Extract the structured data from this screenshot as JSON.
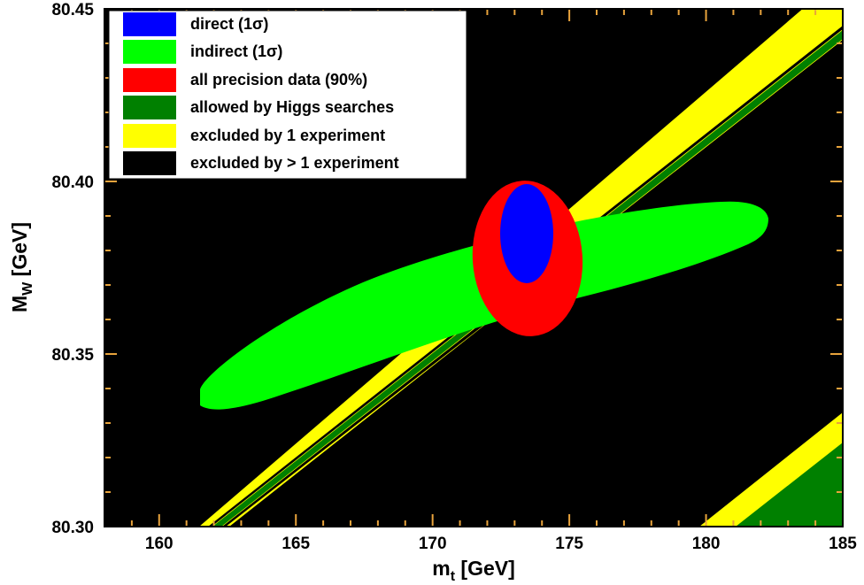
{
  "chart_data": {
    "type": "contour",
    "xlabel_main": "m",
    "xlabel_sub": "t",
    "xlabel_unit": " [GeV]",
    "ylabel_main": "M",
    "ylabel_sub": "W",
    "ylabel_unit": " [GeV]",
    "xlim": [
      158,
      185
    ],
    "ylim": [
      80.3,
      80.45
    ],
    "xticks": [
      160,
      165,
      170,
      175,
      180,
      185
    ],
    "xtick_labels": [
      "160",
      "165",
      "170",
      "175",
      "180",
      "185"
    ],
    "yticks": [
      80.3,
      80.35,
      80.4,
      80.45
    ],
    "ytick_labels": [
      "80.30",
      "80.35",
      "80.40",
      "80.45"
    ],
    "background_color": "#000000",
    "legend": {
      "position": "top-left",
      "entries": [
        {
          "label": "direct  (1σ)",
          "color": "#0000ff"
        },
        {
          "label": "indirect (1σ)",
          "color": "#00ff00"
        },
        {
          "label": "all precision data (90%)",
          "color": "#ff0000"
        },
        {
          "label": "allowed by Higgs searches",
          "color": "#008000"
        },
        {
          "label": "excluded by 1 experiment",
          "color": "#ffff00"
        },
        {
          "label": "excluded by > 1 experiment",
          "color": "#000000"
        }
      ]
    },
    "regions": [
      {
        "name": "indirect (1σ)",
        "shape": "ellipse",
        "center": [
          172.5,
          80.365
        ],
        "color": "#00ff00"
      },
      {
        "name": "all precision data (90%)",
        "shape": "ellipse",
        "center": [
          173.3,
          80.376
        ],
        "color": "#ff0000"
      },
      {
        "name": "direct  (1σ)",
        "shape": "ellipse",
        "center": [
          173.4,
          80.385
        ],
        "color": "#0000ff"
      }
    ],
    "bands": [
      {
        "name": "allowed by Higgs searches (diagonal band)",
        "from": [
          161.5,
          80.3
        ],
        "to": [
          185,
          80.442
        ],
        "color": "#008000"
      },
      {
        "name": "allowed by Higgs searches (corner)",
        "from": [
          180,
          80.3
        ],
        "to": [
          185,
          80.33
        ],
        "color": "#008000"
      }
    ]
  }
}
